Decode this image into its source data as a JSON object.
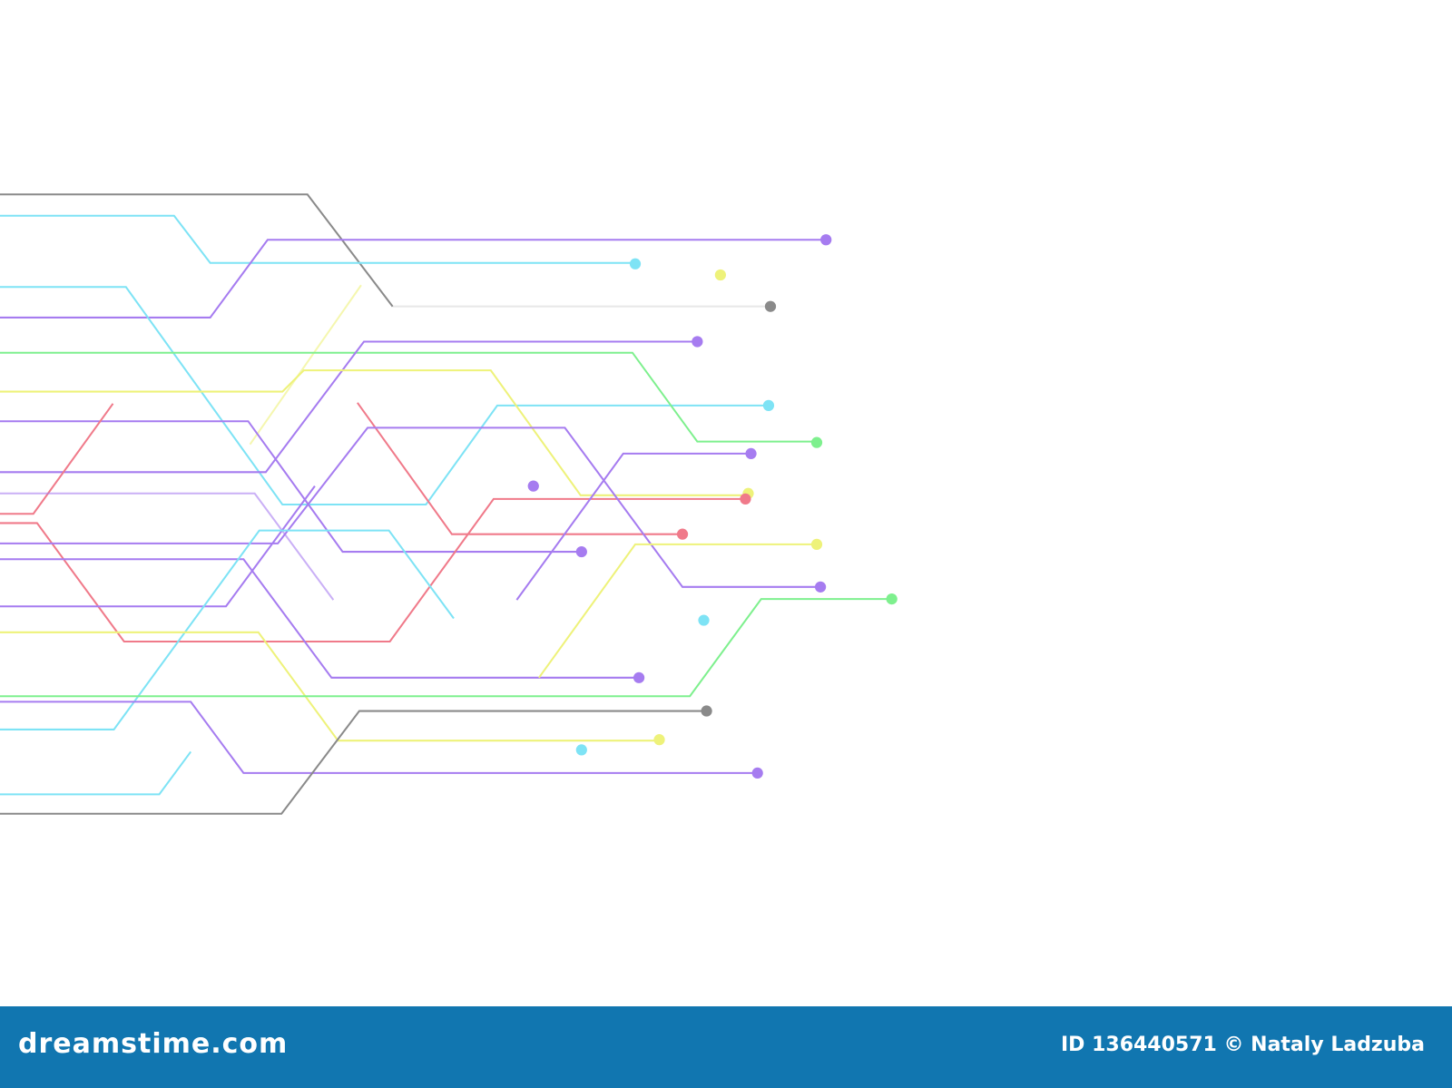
{
  "colors": {
    "purple": "#a67cf0",
    "cyan": "#7ee3f5",
    "gray": "#8a8a8a",
    "green": "#7ef08e",
    "yellow": "#eef27a",
    "red": "#f07a8a",
    "footer": "#1176b0"
  },
  "footer": {
    "logo": "dreamstime.com",
    "credit": "ID 136440571 © Nataly Ladzuba"
  }
}
